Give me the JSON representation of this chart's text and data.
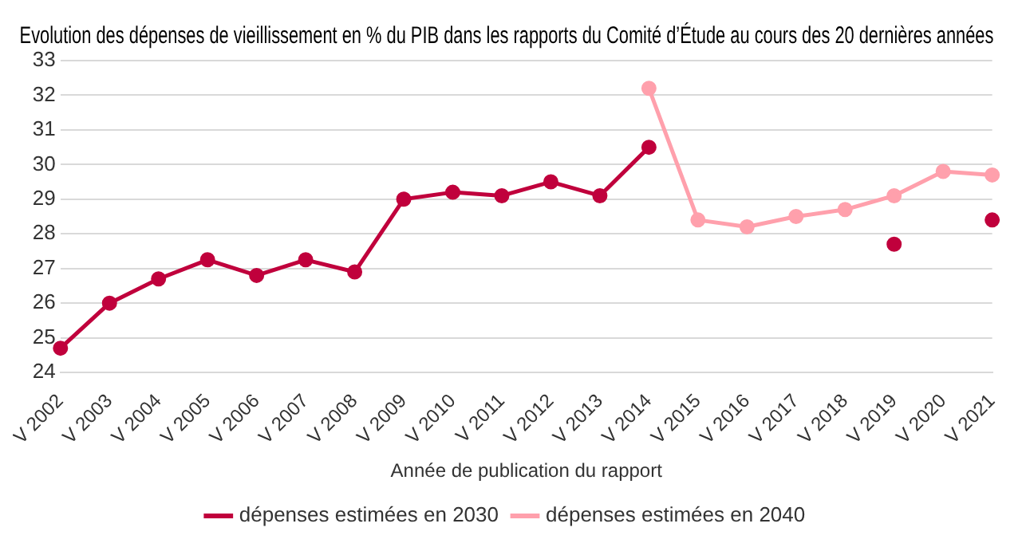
{
  "chart_data": {
    "type": "line",
    "title": "Evolution des dépenses de vieillissement en % du PIB dans les rapports du Comité d’Étude au cours des 20 dernières années",
    "xlabel": "Année de publication du rapport",
    "categories": [
      "V 2002",
      "V 2003",
      "V 2004",
      "V 2005",
      "V 2006",
      "V 2007",
      "V 2008",
      "V 2009",
      "V 2010",
      "V 2011",
      "V 2012",
      "V 2013",
      "V 2014",
      "V 2015",
      "V 2016",
      "V 2017",
      "V 2018",
      "V 2019",
      "V 2020",
      "V 2021"
    ],
    "series": [
      {
        "name": "dépenses estimées en 2030",
        "color": "#c0003c",
        "values": [
          24.7,
          26.0,
          26.7,
          27.25,
          26.8,
          27.25,
          26.9,
          29.0,
          29.2,
          29.1,
          29.5,
          29.1,
          30.5,
          null,
          null,
          null,
          null,
          27.7,
          null,
          28.4
        ]
      },
      {
        "name": "dépenses estimées en 2040",
        "color": "#ffa0ac",
        "values": [
          null,
          null,
          null,
          null,
          null,
          null,
          null,
          null,
          null,
          null,
          null,
          null,
          32.2,
          28.4,
          28.2,
          28.5,
          28.7,
          29.1,
          29.8,
          29.7
        ]
      }
    ],
    "ylim": [
      24,
      33
    ],
    "yticks": [
      24,
      25,
      26,
      27,
      28,
      29,
      30,
      31,
      32,
      33
    ],
    "grid": "y",
    "legend": "bottom",
    "marker": "circle",
    "line_style": "solid"
  }
}
